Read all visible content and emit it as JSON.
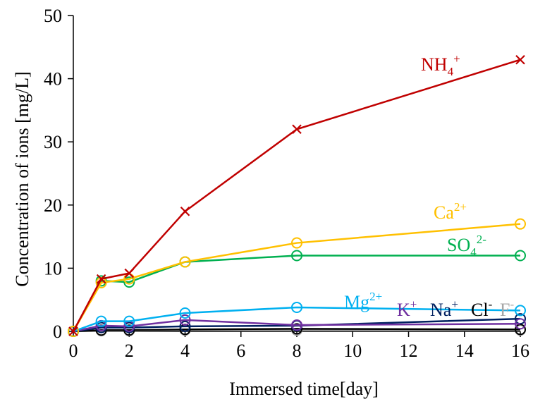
{
  "chart_data": {
    "type": "line",
    "title": "",
    "xlabel": "Immersed time[day]",
    "ylabel": "Concentration of ions [mg/L]",
    "xlim": [
      0,
      16
    ],
    "ylim": [
      0,
      50
    ],
    "x_ticks": [
      0,
      2,
      4,
      6,
      8,
      10,
      12,
      14,
      16
    ],
    "y_ticks": [
      0,
      10,
      20,
      30,
      40,
      50
    ],
    "grid": false,
    "legend": "inline labels",
    "x": [
      0,
      1,
      2,
      4,
      8,
      16
    ],
    "series": [
      {
        "name": "NH4+",
        "label_base": "NH",
        "label_sub": "4",
        "label_sup": "+",
        "color": "#c00000",
        "marker": "x",
        "values": [
          0,
          8.3,
          9.2,
          19.0,
          32.0,
          43.0
        ]
      },
      {
        "name": "Ca2+",
        "label_base": "Ca",
        "label_sub": "",
        "label_sup": "2+",
        "color": "#ffc000",
        "marker": "circle",
        "values": [
          0,
          7.7,
          8.3,
          11.0,
          14.0,
          17.0
        ]
      },
      {
        "name": "SO42-",
        "label_base": "SO",
        "label_sub": "4",
        "label_sup": "2-",
        "color": "#00b050",
        "marker": "circle",
        "values": [
          0,
          8.0,
          7.8,
          11.0,
          12.0,
          12.0
        ]
      },
      {
        "name": "Mg2+",
        "label_base": "Mg",
        "label_sub": "",
        "label_sup": "2+",
        "color": "#00b0f0",
        "marker": "circle",
        "values": [
          0,
          1.6,
          1.6,
          2.9,
          3.8,
          3.3
        ]
      },
      {
        "name": "K+",
        "label_base": "K",
        "label_sub": "",
        "label_sup": "+",
        "color": "#7030a0",
        "marker": "circle",
        "values": [
          0,
          0.9,
          0.8,
          1.8,
          1.0,
          1.2
        ]
      },
      {
        "name": "Na+",
        "label_base": "Na",
        "label_sub": "",
        "label_sup": "+",
        "color": "#002060",
        "marker": "circle",
        "values": [
          0,
          0.6,
          0.6,
          0.8,
          0.9,
          2.0
        ]
      },
      {
        "name": "Cl-",
        "label_base": "Cl",
        "label_sub": "",
        "label_sup": "-",
        "color": "#000000",
        "marker": "circle",
        "values": [
          0,
          0.2,
          0.2,
          0.3,
          0.4,
          0.3
        ]
      },
      {
        "name": "F-",
        "label_base": "F",
        "label_sub": "",
        "label_sup": "-",
        "color": "#a6a6a6",
        "marker": "circle",
        "values": [
          0,
          0.1,
          0.1,
          0.2,
          0.2,
          0.2
        ]
      }
    ]
  }
}
